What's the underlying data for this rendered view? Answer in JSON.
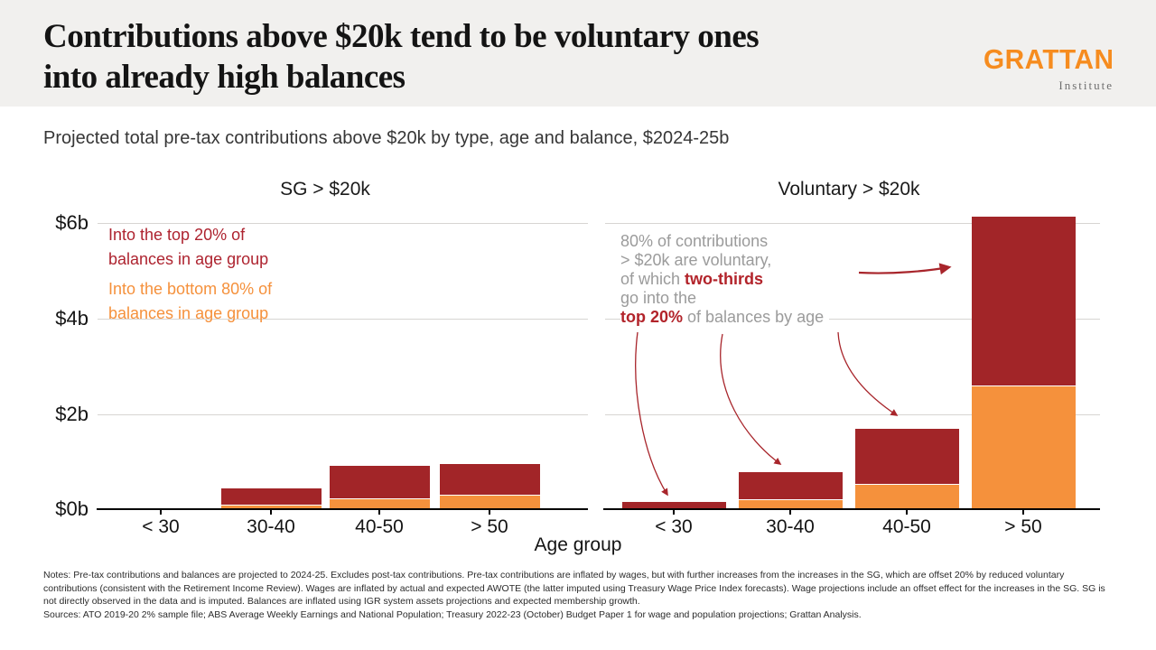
{
  "header": {
    "title_line1": "Contributions above $20k tend to be voluntary ones",
    "title_line2": "into already high balances",
    "logo_wordmark": "GRATTAN",
    "logo_sub": "Institute"
  },
  "subtitle": "Projected total pre-tax contributions above $20k by type, age and balance, $2024-25b",
  "colors": {
    "top20_red": "#a22528",
    "bottom80_orange": "#f5913c",
    "annotation_gray": "#9b9b9b",
    "annotation_red": "#b2232a",
    "header_bg": "#f1f0ee",
    "logo_orange": "#f68c1f",
    "gridline_gray": "#d7d5d2"
  },
  "legend": {
    "top20_lines": [
      "Into the top 20% of",
      "balances in age group"
    ],
    "bottom80_lines": [
      "Into the bottom 80% of",
      "balances in age group"
    ]
  },
  "annotation": {
    "lines": [
      [
        {
          "text": "80% of contributions",
          "color": "gray"
        }
      ],
      [
        {
          "text": "> $20k are voluntary,",
          "color": "gray"
        }
      ],
      [
        {
          "text": "of which ",
          "color": "gray"
        },
        {
          "text": "two-thirds",
          "color": "red"
        }
      ],
      [
        {
          "text": "go into the",
          "color": "gray"
        }
      ],
      [
        {
          "text": "top 20%",
          "color": "red"
        },
        {
          "text": " of balances by age",
          "color": "gray"
        }
      ]
    ]
  },
  "chart_data": {
    "type": "bar",
    "stacked": true,
    "categories": [
      "< 30",
      "30-40",
      "40-50",
      "> 50"
    ],
    "xlabel": "Age group",
    "ylim": [
      0,
      6.3
    ],
    "grid": true,
    "legend_position": "top-left-inside",
    "yticks": [
      {
        "value": 0,
        "label": "$0b"
      },
      {
        "value": 2,
        "label": "$2b"
      },
      {
        "value": 4,
        "label": "$4b"
      },
      {
        "value": 6,
        "label": "$6b"
      }
    ],
    "unit": "$ billions",
    "panels": [
      {
        "title": "SG > $20k",
        "series": [
          {
            "name": "Into the bottom 80% of balances in age group",
            "color": "#f5913c",
            "values": [
              0,
              0.05,
              0.19,
              0.26
            ]
          },
          {
            "name": "Into the top 20% of balances in age group",
            "color": "#a22528",
            "values": [
              0,
              0.35,
              0.68,
              0.65
            ]
          }
        ]
      },
      {
        "title": "Voluntary > $20k",
        "series": [
          {
            "name": "Into the bottom 80% of balances in age group",
            "color": "#f5913c",
            "values": [
              0,
              0.17,
              0.5,
              2.57
            ]
          },
          {
            "name": "Into the top 20% of balances in age group",
            "color": "#a22528",
            "values": [
              0.13,
              0.57,
              1.15,
              3.55
            ]
          }
        ]
      }
    ]
  },
  "notes": "Notes: Pre-tax contributions and balances are projected to 2024-25. Excludes post-tax contributions. Pre-tax contributions are inflated by wages, but with further increases from the increases in the SG, which are offset 20% by reduced voluntary contributions (consistent with the Retirement Income Review). Wages are inflated by actual and expected AWOTE (the latter imputed using Treasury Wage Price Index forecasts). Wage projections include an offset effect for the increases in the SG. SG is not directly observed in the data and is imputed. Balances are inflated using IGR system assets projections and expected membership growth.",
  "sources": "Sources: ATO 2019-20 2% sample file; ABS Average Weekly Earnings and National Population; Treasury 2022-23 (October) Budget Paper 1 for wage and population projections; Grattan Analysis."
}
